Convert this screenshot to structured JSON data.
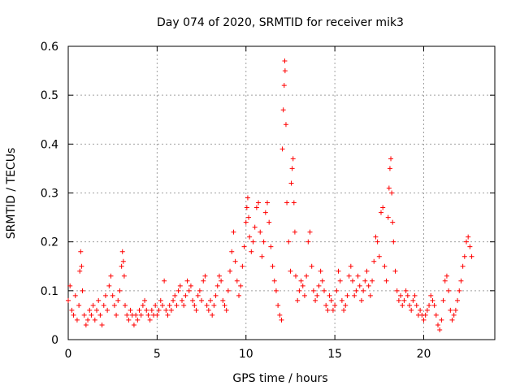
{
  "chart_data": {
    "type": "scatter",
    "title": "Day 074 of 2020, SRMTID for receiver mik3",
    "xlabel": "GPS time / hours",
    "ylabel": "SRMTID / TECUs",
    "xlim": [
      0,
      24
    ],
    "ylim": [
      0,
      0.6
    ],
    "x_ticks": [
      0,
      5,
      10,
      15,
      20
    ],
    "x_tick_labels": [
      "0",
      "5",
      "10",
      "15",
      "20"
    ],
    "y_ticks": [
      0,
      0.1,
      0.2,
      0.3,
      0.4,
      0.5,
      0.6
    ],
    "y_tick_labels": [
      "0",
      "0.1",
      "0.2",
      "0.3",
      "0.4",
      "0.5",
      "0.6"
    ],
    "grid": true,
    "marker": "+",
    "color": "#ff0000",
    "series": [
      {
        "name": "SRMTID",
        "points": [
          [
            0.0,
            0.08
          ],
          [
            0.1,
            0.11
          ],
          [
            0.2,
            0.06
          ],
          [
            0.3,
            0.05
          ],
          [
            0.4,
            0.09
          ],
          [
            0.5,
            0.04
          ],
          [
            0.6,
            0.07
          ],
          [
            0.65,
            0.14
          ],
          [
            0.7,
            0.18
          ],
          [
            0.75,
            0.15
          ],
          [
            0.8,
            0.1
          ],
          [
            0.9,
            0.05
          ],
          [
            1.0,
            0.03
          ],
          [
            1.1,
            0.04
          ],
          [
            1.2,
            0.06
          ],
          [
            1.3,
            0.05
          ],
          [
            1.4,
            0.07
          ],
          [
            1.5,
            0.04
          ],
          [
            1.6,
            0.06
          ],
          [
            1.7,
            0.08
          ],
          [
            1.8,
            0.05
          ],
          [
            1.9,
            0.03
          ],
          [
            2.0,
            0.07
          ],
          [
            2.1,
            0.09
          ],
          [
            2.2,
            0.06
          ],
          [
            2.3,
            0.11
          ],
          [
            2.4,
            0.13
          ],
          [
            2.5,
            0.09
          ],
          [
            2.6,
            0.07
          ],
          [
            2.7,
            0.05
          ],
          [
            2.8,
            0.08
          ],
          [
            2.9,
            0.1
          ],
          [
            3.0,
            0.15
          ],
          [
            3.05,
            0.18
          ],
          [
            3.1,
            0.16
          ],
          [
            3.15,
            0.13
          ],
          [
            3.2,
            0.07
          ],
          [
            3.3,
            0.05
          ],
          [
            3.4,
            0.04
          ],
          [
            3.5,
            0.06
          ],
          [
            3.6,
            0.05
          ],
          [
            3.7,
            0.03
          ],
          [
            3.8,
            0.05
          ],
          [
            3.9,
            0.04
          ],
          [
            4.0,
            0.06
          ],
          [
            4.1,
            0.05
          ],
          [
            4.2,
            0.07
          ],
          [
            4.3,
            0.08
          ],
          [
            4.4,
            0.06
          ],
          [
            4.5,
            0.05
          ],
          [
            4.6,
            0.04
          ],
          [
            4.7,
            0.06
          ],
          [
            4.8,
            0.05
          ],
          [
            4.9,
            0.07
          ],
          [
            5.0,
            0.05
          ],
          [
            5.1,
            0.06
          ],
          [
            5.2,
            0.08
          ],
          [
            5.3,
            0.07
          ],
          [
            5.4,
            0.12
          ],
          [
            5.5,
            0.06
          ],
          [
            5.6,
            0.05
          ],
          [
            5.7,
            0.07
          ],
          [
            5.8,
            0.06
          ],
          [
            5.9,
            0.08
          ],
          [
            6.0,
            0.09
          ],
          [
            6.1,
            0.07
          ],
          [
            6.2,
            0.1
          ],
          [
            6.3,
            0.11
          ],
          [
            6.4,
            0.08
          ],
          [
            6.5,
            0.07
          ],
          [
            6.6,
            0.09
          ],
          [
            6.7,
            0.12
          ],
          [
            6.8,
            0.1
          ],
          [
            6.9,
            0.11
          ],
          [
            7.0,
            0.08
          ],
          [
            7.1,
            0.07
          ],
          [
            7.2,
            0.06
          ],
          [
            7.3,
            0.09
          ],
          [
            7.4,
            0.1
          ],
          [
            7.5,
            0.08
          ],
          [
            7.6,
            0.12
          ],
          [
            7.7,
            0.13
          ],
          [
            7.8,
            0.07
          ],
          [
            7.9,
            0.06
          ],
          [
            8.0,
            0.08
          ],
          [
            8.1,
            0.05
          ],
          [
            8.2,
            0.07
          ],
          [
            8.3,
            0.09
          ],
          [
            8.4,
            0.11
          ],
          [
            8.5,
            0.13
          ],
          [
            8.6,
            0.12
          ],
          [
            8.7,
            0.08
          ],
          [
            8.8,
            0.07
          ],
          [
            8.9,
            0.06
          ],
          [
            9.0,
            0.1
          ],
          [
            9.1,
            0.14
          ],
          [
            9.2,
            0.18
          ],
          [
            9.3,
            0.22
          ],
          [
            9.4,
            0.16
          ],
          [
            9.5,
            0.12
          ],
          [
            9.6,
            0.09
          ],
          [
            9.7,
            0.11
          ],
          [
            9.8,
            0.15
          ],
          [
            9.9,
            0.19
          ],
          [
            10.0,
            0.24
          ],
          [
            10.05,
            0.27
          ],
          [
            10.1,
            0.29
          ],
          [
            10.15,
            0.25
          ],
          [
            10.2,
            0.21
          ],
          [
            10.3,
            0.18
          ],
          [
            10.4,
            0.2
          ],
          [
            10.5,
            0.23
          ],
          [
            10.6,
            0.27
          ],
          [
            10.7,
            0.28
          ],
          [
            10.8,
            0.22
          ],
          [
            10.9,
            0.17
          ],
          [
            11.0,
            0.2
          ],
          [
            11.1,
            0.26
          ],
          [
            11.2,
            0.28
          ],
          [
            11.3,
            0.24
          ],
          [
            11.4,
            0.19
          ],
          [
            11.5,
            0.15
          ],
          [
            11.6,
            0.12
          ],
          [
            11.7,
            0.1
          ],
          [
            11.8,
            0.07
          ],
          [
            11.9,
            0.05
          ],
          [
            12.0,
            0.04
          ],
          [
            12.05,
            0.39
          ],
          [
            12.1,
            0.47
          ],
          [
            12.15,
            0.52
          ],
          [
            12.18,
            0.57
          ],
          [
            12.2,
            0.55
          ],
          [
            12.25,
            0.44
          ],
          [
            12.3,
            0.28
          ],
          [
            12.4,
            0.2
          ],
          [
            12.5,
            0.14
          ],
          [
            12.55,
            0.32
          ],
          [
            12.6,
            0.35
          ],
          [
            12.65,
            0.37
          ],
          [
            12.7,
            0.28
          ],
          [
            12.75,
            0.22
          ],
          [
            12.8,
            0.13
          ],
          [
            12.9,
            0.08
          ],
          [
            13.0,
            0.1
          ],
          [
            13.1,
            0.12
          ],
          [
            13.2,
            0.11
          ],
          [
            13.3,
            0.09
          ],
          [
            13.4,
            0.13
          ],
          [
            13.5,
            0.2
          ],
          [
            13.6,
            0.22
          ],
          [
            13.7,
            0.15
          ],
          [
            13.8,
            0.1
          ],
          [
            13.9,
            0.08
          ],
          [
            14.0,
            0.09
          ],
          [
            14.1,
            0.11
          ],
          [
            14.2,
            0.14
          ],
          [
            14.3,
            0.12
          ],
          [
            14.4,
            0.1
          ],
          [
            14.5,
            0.07
          ],
          [
            14.6,
            0.06
          ],
          [
            14.7,
            0.09
          ],
          [
            14.8,
            0.08
          ],
          [
            14.9,
            0.06
          ],
          [
            15.0,
            0.07
          ],
          [
            15.1,
            0.1
          ],
          [
            15.2,
            0.14
          ],
          [
            15.3,
            0.12
          ],
          [
            15.4,
            0.08
          ],
          [
            15.5,
            0.06
          ],
          [
            15.6,
            0.07
          ],
          [
            15.7,
            0.09
          ],
          [
            15.8,
            0.13
          ],
          [
            15.9,
            0.15
          ],
          [
            16.0,
            0.12
          ],
          [
            16.1,
            0.09
          ],
          [
            16.2,
            0.1
          ],
          [
            16.3,
            0.13
          ],
          [
            16.4,
            0.11
          ],
          [
            16.5,
            0.08
          ],
          [
            16.6,
            0.1
          ],
          [
            16.7,
            0.12
          ],
          [
            16.8,
            0.14
          ],
          [
            16.9,
            0.11
          ],
          [
            17.0,
            0.09
          ],
          [
            17.1,
            0.12
          ],
          [
            17.2,
            0.16
          ],
          [
            17.3,
            0.21
          ],
          [
            17.4,
            0.2
          ],
          [
            17.5,
            0.17
          ],
          [
            17.6,
            0.26
          ],
          [
            17.7,
            0.27
          ],
          [
            17.8,
            0.15
          ],
          [
            17.9,
            0.12
          ],
          [
            18.0,
            0.25
          ],
          [
            18.05,
            0.31
          ],
          [
            18.1,
            0.35
          ],
          [
            18.15,
            0.37
          ],
          [
            18.2,
            0.3
          ],
          [
            18.25,
            0.24
          ],
          [
            18.3,
            0.2
          ],
          [
            18.4,
            0.14
          ],
          [
            18.5,
            0.1
          ],
          [
            18.6,
            0.08
          ],
          [
            18.7,
            0.09
          ],
          [
            18.8,
            0.07
          ],
          [
            18.9,
            0.08
          ],
          [
            19.0,
            0.1
          ],
          [
            19.1,
            0.09
          ],
          [
            19.2,
            0.07
          ],
          [
            19.3,
            0.06
          ],
          [
            19.4,
            0.08
          ],
          [
            19.5,
            0.09
          ],
          [
            19.6,
            0.07
          ],
          [
            19.7,
            0.05
          ],
          [
            19.8,
            0.06
          ],
          [
            19.9,
            0.05
          ],
          [
            20.0,
            0.04
          ],
          [
            20.1,
            0.05
          ],
          [
            20.2,
            0.06
          ],
          [
            20.3,
            0.07
          ],
          [
            20.4,
            0.09
          ],
          [
            20.5,
            0.08
          ],
          [
            20.6,
            0.07
          ],
          [
            20.7,
            0.05
          ],
          [
            20.8,
            0.03
          ],
          [
            20.9,
            0.02
          ],
          [
            21.0,
            0.04
          ],
          [
            21.1,
            0.08
          ],
          [
            21.2,
            0.12
          ],
          [
            21.3,
            0.13
          ],
          [
            21.4,
            0.1
          ],
          [
            21.5,
            0.06
          ],
          [
            21.6,
            0.04
          ],
          [
            21.7,
            0.05
          ],
          [
            21.8,
            0.06
          ],
          [
            21.9,
            0.08
          ],
          [
            22.0,
            0.1
          ],
          [
            22.1,
            0.12
          ],
          [
            22.2,
            0.15
          ],
          [
            22.3,
            0.17
          ],
          [
            22.4,
            0.2
          ],
          [
            22.5,
            0.21
          ],
          [
            22.6,
            0.19
          ],
          [
            22.7,
            0.17
          ]
        ]
      }
    ]
  }
}
